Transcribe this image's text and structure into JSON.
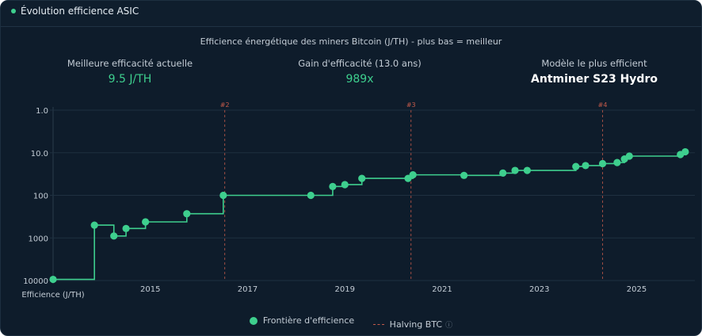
{
  "header": {
    "title": "Évolution efficience ASIC"
  },
  "subtitle": "Efficience énergétique des miners Bitcoin (J/TH) - plus bas = meilleur",
  "kpis": [
    {
      "label": "Meilleure efficacité actuelle",
      "value": "9.5 J/TH"
    },
    {
      "label": "Gain d'efficacité (13.0 ans)",
      "value": "989x"
    },
    {
      "label": "Modèle le plus efficient",
      "value": "Antminer S23 Hydro"
    }
  ],
  "legend": {
    "frontier": "Frontière d'efficience",
    "halving": "Halving BTC",
    "info_icon": "ⓘ"
  },
  "colors": {
    "accent": "#3ecf8e",
    "halving": "#c45a4a",
    "background": "#0e1c2b"
  },
  "chart_data": {
    "type": "line",
    "step": true,
    "ylabel": "Efficience (J/TH)",
    "yscale": "log",
    "yaxis_inverted": true,
    "ylim": [
      10000,
      1.0
    ],
    "xlim": [
      2013.0,
      2026.1
    ],
    "y_ticks": [
      {
        "value": 1,
        "label": "1.0"
      },
      {
        "value": 10,
        "label": "10.0"
      },
      {
        "value": 100,
        "label": "100"
      },
      {
        "value": 1000,
        "label": "1000"
      },
      {
        "value": 10000,
        "label": "10000"
      }
    ],
    "x_ticks": [
      2015,
      2017,
      2019,
      2021,
      2023,
      2025
    ],
    "grid": false,
    "legend_position": "bottom",
    "series": [
      {
        "name": "Frontière d'efficience",
        "points": [
          {
            "x": 2013.0,
            "y": 9400
          },
          {
            "x": 2013.85,
            "y": 500
          },
          {
            "x": 2014.25,
            "y": 900
          },
          {
            "x": 2014.5,
            "y": 600
          },
          {
            "x": 2014.9,
            "y": 420
          },
          {
            "x": 2015.75,
            "y": 270
          },
          {
            "x": 2016.5,
            "y": 100
          },
          {
            "x": 2018.3,
            "y": 100
          },
          {
            "x": 2018.75,
            "y": 62
          },
          {
            "x": 2019.0,
            "y": 56
          },
          {
            "x": 2019.35,
            "y": 40
          },
          {
            "x": 2020.3,
            "y": 40
          },
          {
            "x": 2020.4,
            "y": 33
          },
          {
            "x": 2021.45,
            "y": 34
          },
          {
            "x": 2022.25,
            "y": 30
          },
          {
            "x": 2022.5,
            "y": 26
          },
          {
            "x": 2022.75,
            "y": 26
          },
          {
            "x": 2023.75,
            "y": 21
          },
          {
            "x": 2023.95,
            "y": 20
          },
          {
            "x": 2024.3,
            "y": 18
          },
          {
            "x": 2024.6,
            "y": 17
          },
          {
            "x": 2024.75,
            "y": 14
          },
          {
            "x": 2024.85,
            "y": 12
          },
          {
            "x": 2025.9,
            "y": 11
          },
          {
            "x": 2026.0,
            "y": 9.5
          }
        ]
      }
    ],
    "halvings": [
      {
        "label": "#2",
        "x": 2016.53
      },
      {
        "label": "#3",
        "x": 2020.36
      },
      {
        "label": "#4",
        "x": 2024.3
      }
    ]
  }
}
